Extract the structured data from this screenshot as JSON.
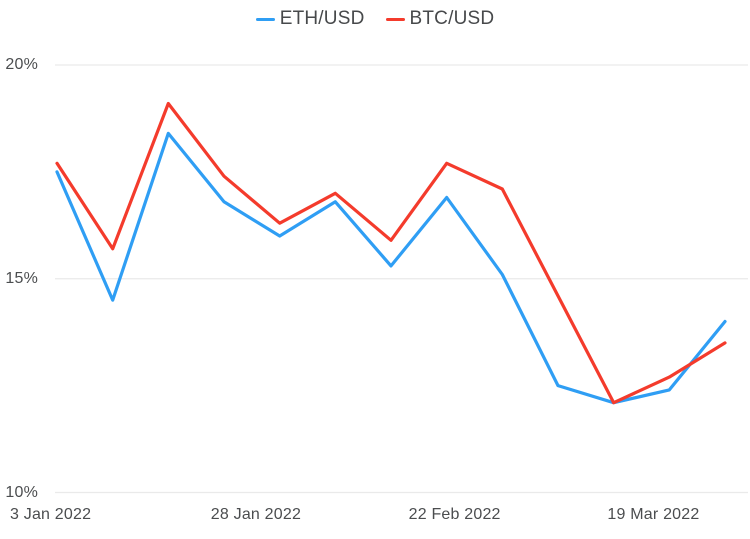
{
  "colors": {
    "background": "#ffffff",
    "gridline": "#eaeaea",
    "axis_text": "#4b4d4f",
    "legend_text": "#47494b",
    "eth_line": "#2f9ef4",
    "btc_line": "#f43b2c"
  },
  "chart_data": {
    "type": "line",
    "title": "",
    "xlabel": "",
    "ylabel": "",
    "grid": "horizontal",
    "legend_position": "top-center",
    "ylim": [
      10,
      20
    ],
    "y_unit": "%",
    "categories": [
      "3 Jan 2022",
      "10 Jan 2022",
      "17 Jan 2022",
      "24 Jan 2022",
      "31 Jan 2022",
      "7 Feb 2022",
      "14 Feb 2022",
      "21 Feb 2022",
      "28 Feb 2022",
      "7 Mar 2022",
      "14 Mar 2022",
      "21 Mar 2022",
      "28 Mar 2022"
    ],
    "point_day_offsets": [
      0,
      7,
      14,
      21,
      28,
      35,
      42,
      49,
      56,
      63,
      70,
      77,
      84
    ],
    "x_range_days": 84,
    "series": [
      {
        "name": "ETH/USD",
        "color": "#2f9ef4",
        "values": [
          17.5,
          14.5,
          18.4,
          16.8,
          16.0,
          16.8,
          15.3,
          16.9,
          15.1,
          12.5,
          12.1,
          12.4,
          14.0
        ]
      },
      {
        "name": "BTC/USD",
        "color": "#f43b2c",
        "values": [
          17.7,
          15.7,
          19.1,
          17.4,
          16.3,
          17.0,
          15.9,
          17.7,
          17.1,
          14.6,
          12.1,
          12.7,
          13.5
        ]
      }
    ],
    "yticks": [
      {
        "label": "20%",
        "value": 20
      },
      {
        "label": "15%",
        "value": 15
      },
      {
        "label": "10%",
        "value": 10
      }
    ],
    "xticks": [
      {
        "label": "3 Jan 2022",
        "day_offset": 0
      },
      {
        "label": "28 Jan 2022",
        "day_offset": 25
      },
      {
        "label": "22 Feb 2022",
        "day_offset": 50
      },
      {
        "label": "19 Mar 2022",
        "day_offset": 75
      }
    ]
  }
}
